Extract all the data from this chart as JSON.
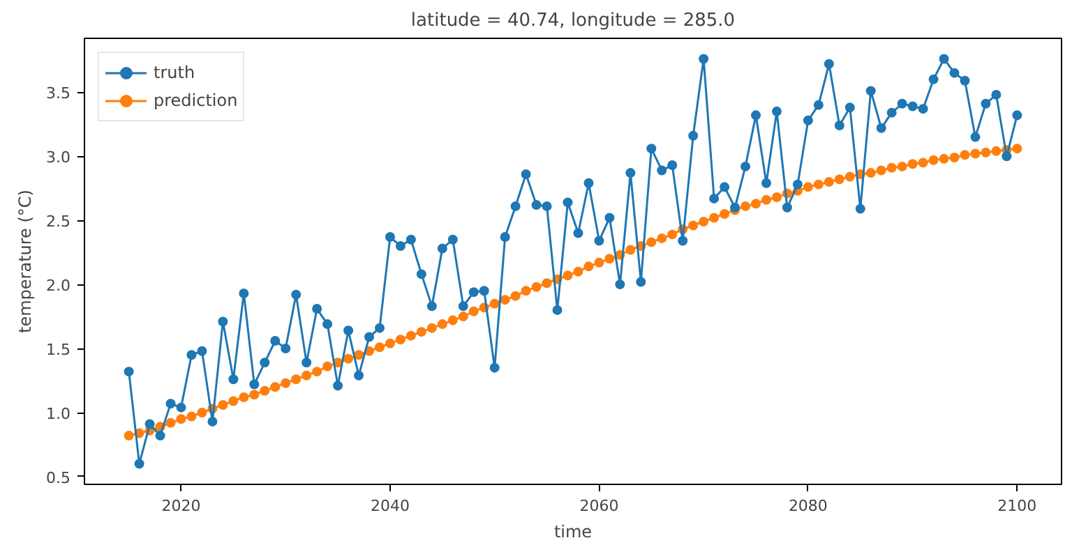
{
  "chart_data": {
    "type": "line",
    "title": "latitude = 40.74, longitude = 285.0",
    "xlabel": "time",
    "ylabel": "temperature (°C)",
    "x": [
      2015,
      2016,
      2017,
      2018,
      2019,
      2020,
      2021,
      2022,
      2023,
      2024,
      2025,
      2026,
      2027,
      2028,
      2029,
      2030,
      2031,
      2032,
      2033,
      2034,
      2035,
      2036,
      2037,
      2038,
      2039,
      2040,
      2041,
      2042,
      2043,
      2044,
      2045,
      2046,
      2047,
      2048,
      2049,
      2050,
      2051,
      2052,
      2053,
      2054,
      2055,
      2056,
      2057,
      2058,
      2059,
      2060,
      2061,
      2062,
      2063,
      2064,
      2065,
      2066,
      2067,
      2068,
      2069,
      2070,
      2071,
      2072,
      2073,
      2074,
      2075,
      2076,
      2077,
      2078,
      2079,
      2080,
      2081,
      2082,
      2083,
      2084,
      2085,
      2086,
      2087,
      2088,
      2089,
      2090,
      2091,
      2092,
      2093,
      2094,
      2095,
      2096,
      2097,
      2098,
      2099,
      2100
    ],
    "series": [
      {
        "name": "truth",
        "color": "#1f77b4",
        "values": [
          1.32,
          0.6,
          0.91,
          0.82,
          1.07,
          1.04,
          1.45,
          1.48,
          0.93,
          1.71,
          1.26,
          1.93,
          1.22,
          1.39,
          1.56,
          1.5,
          1.92,
          1.39,
          1.81,
          1.69,
          1.21,
          1.64,
          1.29,
          1.59,
          1.66,
          2.37,
          2.3,
          2.35,
          2.08,
          1.83,
          2.28,
          2.35,
          1.83,
          1.94,
          1.95,
          1.35,
          2.37,
          2.61,
          2.86,
          2.62,
          2.61,
          1.8,
          2.64,
          2.4,
          2.79,
          2.34,
          2.52,
          2.0,
          2.87,
          2.02,
          3.06,
          2.89,
          2.93,
          2.34,
          3.16,
          3.76,
          2.67,
          2.76,
          2.6,
          2.92,
          3.32,
          2.79,
          3.35,
          2.6,
          2.78,
          3.28,
          3.4,
          3.72,
          3.24,
          3.38,
          2.59,
          3.51,
          3.22,
          3.34,
          3.41,
          3.39,
          3.37,
          3.6,
          3.76,
          3.65,
          3.59,
          3.15,
          3.41,
          3.48,
          3.0,
          3.32
        ]
      },
      {
        "name": "prediction",
        "color": "#ff7f0e",
        "values": [
          0.82,
          0.84,
          0.86,
          0.89,
          0.92,
          0.95,
          0.97,
          1.0,
          1.03,
          1.06,
          1.09,
          1.12,
          1.14,
          1.17,
          1.2,
          1.23,
          1.26,
          1.29,
          1.32,
          1.36,
          1.39,
          1.42,
          1.45,
          1.48,
          1.51,
          1.54,
          1.57,
          1.6,
          1.63,
          1.66,
          1.69,
          1.72,
          1.75,
          1.79,
          1.82,
          1.85,
          1.88,
          1.91,
          1.95,
          1.98,
          2.01,
          2.04,
          2.07,
          2.1,
          2.14,
          2.17,
          2.2,
          2.23,
          2.27,
          2.3,
          2.33,
          2.36,
          2.39,
          2.43,
          2.46,
          2.49,
          2.52,
          2.55,
          2.58,
          2.61,
          2.63,
          2.66,
          2.68,
          2.71,
          2.73,
          2.76,
          2.78,
          2.8,
          2.82,
          2.84,
          2.86,
          2.87,
          2.89,
          2.91,
          2.92,
          2.94,
          2.95,
          2.97,
          2.98,
          2.99,
          3.01,
          3.02,
          3.03,
          3.04,
          3.05,
          3.06
        ]
      }
    ],
    "xlim": [
      2010.75,
      2104.25
    ],
    "xticks": [
      2020,
      2040,
      2060,
      2080,
      2100
    ],
    "ylim": [
      0.44,
      3.92
    ],
    "yticks": [
      {
        "value": 0.5,
        "label": "0.5"
      },
      {
        "value": 1,
        "label": "1.0"
      },
      {
        "value": 1.5,
        "label": "1.5"
      },
      {
        "value": 2,
        "label": "2.0"
      },
      {
        "value": 2.5,
        "label": "2.5"
      },
      {
        "value": 3,
        "label": "3.0"
      },
      {
        "value": 3.5,
        "label": "3.5"
      }
    ],
    "legend": "top left",
    "marker": "circle",
    "line_style": "solid",
    "grid": false
  }
}
